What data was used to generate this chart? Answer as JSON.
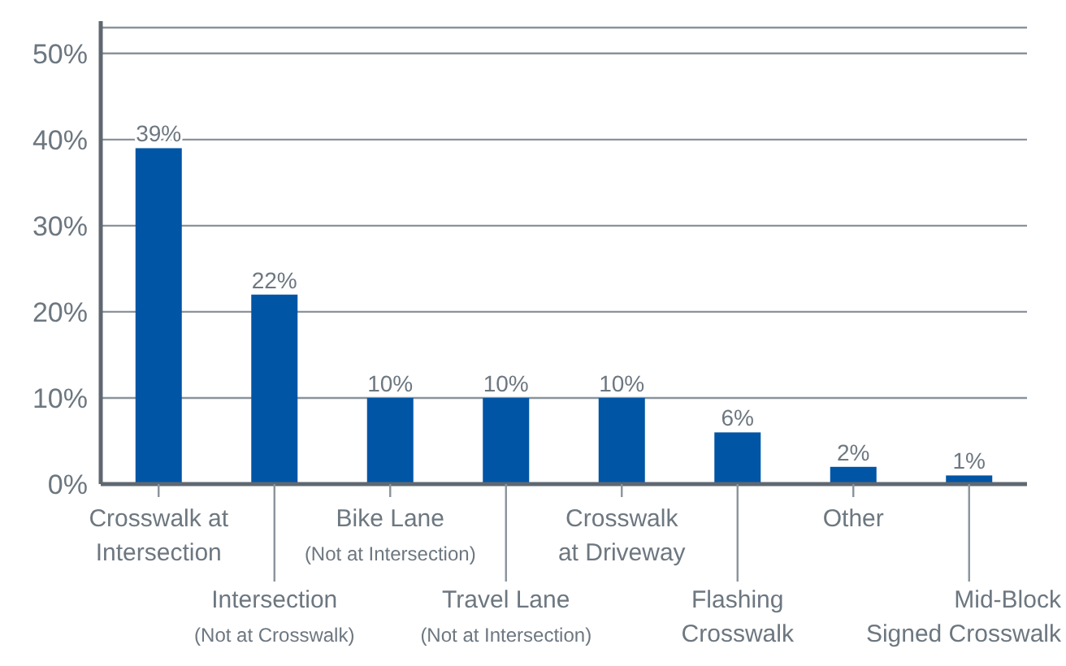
{
  "chart_data": {
    "type": "bar",
    "categories": [
      "Crosswalk at\nIntersection",
      "Intersection\n(Not at Crosswalk)",
      "Bike Lane\n(Not at Intersection)",
      "Travel Lane\n(Not at Intersection)",
      "Crosswalk\nat Driveway",
      "Flashing\nCrosswalk",
      "Other",
      "Mid-Block\nSigned Crosswalk"
    ],
    "values": [
      39,
      22,
      10,
      10,
      10,
      6,
      2,
      1
    ],
    "value_labels": [
      "39%",
      "22%",
      "10%",
      "10%",
      "10%",
      "6%",
      "2%",
      "1%"
    ],
    "color": "#0055a5",
    "ylim": [
      0,
      53
    ],
    "yticks": [
      {
        "value": 0,
        "label": "0%"
      },
      {
        "value": 10,
        "label": "10%"
      },
      {
        "value": 20,
        "label": "20%"
      },
      {
        "value": 30,
        "label": "30%"
      },
      {
        "value": 40,
        "label": "40%"
      },
      {
        "value": 50,
        "label": "50%"
      }
    ],
    "grid": "y"
  }
}
